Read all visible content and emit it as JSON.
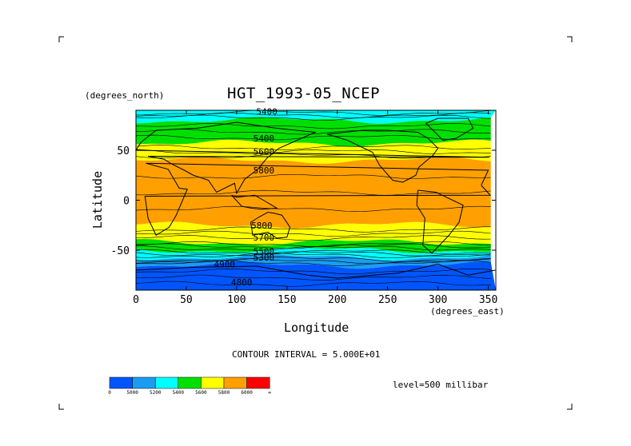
{
  "chart_data": {
    "type": "filled-contour map",
    "title": "HGT_1993-05_NCEP",
    "xlabel": "Longitude",
    "ylabel": "Latitude",
    "x_units": "(degrees_east)",
    "y_units": "(degrees_north)",
    "xlim": [
      0,
      357.5
    ],
    "ylim": [
      -90,
      90
    ],
    "x_ticks": [
      0,
      50,
      100,
      150,
      200,
      250,
      300,
      350
    ],
    "y_ticks": [
      50,
      0,
      -50
    ],
    "contour_interval": "CONTOUR INTERVAL = 5.000E+01",
    "level": "level=500 millibar",
    "colorbar": {
      "labels": [
        "0",
        "5000",
        "5200",
        "5400",
        "5600",
        "5800",
        "6000",
        "∞"
      ],
      "colors": [
        "#0055ff",
        "#1a9cf2",
        "#00ffff",
        "#00e000",
        "#ffff00",
        "#ffa000",
        "#ff0000"
      ]
    },
    "zonal_bands": [
      {
        "lat_from": 90,
        "lat_to": 80,
        "value_range": "5200-5400",
        "color": "#00ffff"
      },
      {
        "lat_from": 80,
        "lat_to": 57,
        "value_range": "5400-5600",
        "color": "#00e000"
      },
      {
        "lat_from": 57,
        "lat_to": 40,
        "value_range": "5600-5800",
        "color": "#ffff00"
      },
      {
        "lat_from": 40,
        "lat_to": -25,
        "value_range": "5800-6000",
        "color": "#ffa000"
      },
      {
        "lat_from": -25,
        "lat_to": -42,
        "value_range": "5600-5800",
        "color": "#ffff00"
      },
      {
        "lat_from": -42,
        "lat_to": -50,
        "value_range": "5400-5600",
        "color": "#00e000"
      },
      {
        "lat_from": -50,
        "lat_to": -57,
        "value_range": "5200-5400",
        "color": "#00ffff"
      },
      {
        "lat_from": -57,
        "lat_to": -65,
        "value_range": "5000-5200",
        "color": "#1a9cf2"
      },
      {
        "lat_from": -65,
        "lat_to": -90,
        "value_range": "0-5000",
        "color": "#0055ff"
      }
    ],
    "contour_labels": [
      {
        "text": "5400",
        "lon": 130,
        "lat": 89
      },
      {
        "text": "5400",
        "lon": 127,
        "lat": 62
      },
      {
        "text": "5600",
        "lon": 127,
        "lat": 49
      },
      {
        "text": "5800",
        "lon": 127,
        "lat": 30
      },
      {
        "text": "5800",
        "lon": 125,
        "lat": -25
      },
      {
        "text": "5700",
        "lon": 127,
        "lat": -37
      },
      {
        "text": "5500",
        "lon": 127,
        "lat": -51
      },
      {
        "text": "5300",
        "lon": 127,
        "lat": -57
      },
      {
        "text": "4900",
        "lon": 88,
        "lat": -64
      },
      {
        "text": "4800",
        "lon": 105,
        "lat": -82
      }
    ]
  }
}
